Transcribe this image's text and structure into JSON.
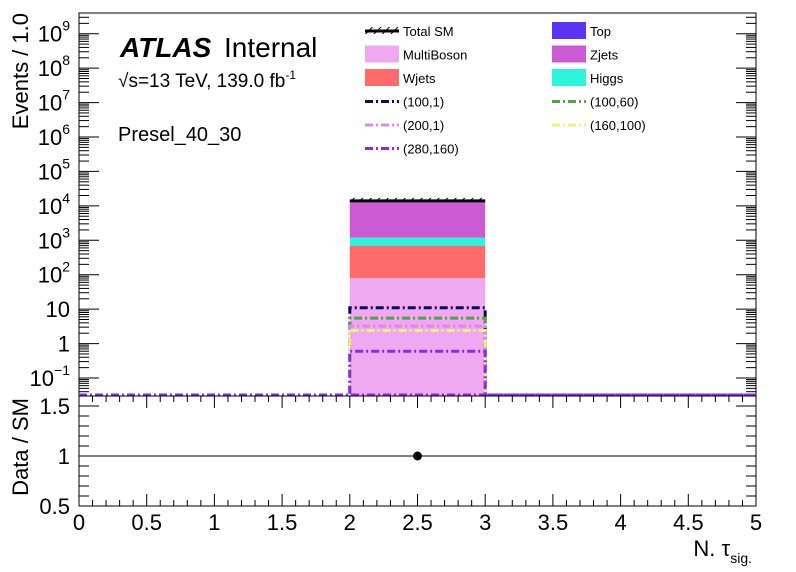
{
  "chart_data": [
    {
      "type": "bar",
      "panel": "main",
      "ylabel": "Events / 1.0",
      "yscale": "log",
      "ylim": [
        0.03,
        4000000000
      ],
      "xlim": [
        0,
        5
      ],
      "y_ticks": [
        {
          "value": 0.1,
          "base": "10",
          "exp": "−1"
        },
        {
          "value": 1,
          "base": "1",
          "exp": ""
        },
        {
          "value": 10,
          "base": "10",
          "exp": ""
        },
        {
          "value": 100,
          "base": "10",
          "exp": "2"
        },
        {
          "value": 1000,
          "base": "10",
          "exp": "3"
        },
        {
          "value": 10000,
          "base": "10",
          "exp": "4"
        },
        {
          "value": 100000,
          "base": "10",
          "exp": "5"
        },
        {
          "value": 1000000,
          "base": "10",
          "exp": "6"
        },
        {
          "value": 10000000,
          "base": "10",
          "exp": "7"
        },
        {
          "value": 100000000,
          "base": "10",
          "exp": "8"
        },
        {
          "value": 1000000000,
          "base": "10",
          "exp": "9"
        }
      ],
      "bin_edges": [
        2,
        3
      ],
      "stack": [
        {
          "name": "MultiBoson",
          "color": "#f0a8f0",
          "value": 80
        },
        {
          "name": "Wjets",
          "color": "#ff6a6a",
          "value": 620
        },
        {
          "name": "Higgs",
          "color": "#2cf5dc",
          "value": 500
        },
        {
          "name": "Zjets",
          "color": "#cc5ad2",
          "value": 12800
        },
        {
          "name": "Top",
          "color": "#5a33f5",
          "value": 0
        }
      ],
      "total_sm": {
        "name": "Total SM",
        "value": 14000
      },
      "signals": [
        {
          "name": "(100,1)",
          "color": "#0b0b57",
          "value": 11
        },
        {
          "name": "(100,60)",
          "color": "#4ea53d",
          "value": 5.5
        },
        {
          "name": "(200,1)",
          "color": "#d98cf0",
          "value": 3.2
        },
        {
          "name": "(160,100)",
          "color": "#f2ee7a",
          "value": 2.4
        },
        {
          "name": "(280,160)",
          "color": "#8a2be2",
          "value": 0.6
        }
      ]
    },
    {
      "type": "scatter",
      "panel": "ratio",
      "ylabel": "Data / SM",
      "xlabel": "N. τ",
      "xlabel_sub": "sig.",
      "ylim": [
        0.5,
        1.6
      ],
      "xlim": [
        0,
        5
      ],
      "y_ticks": [
        "0.5",
        "1",
        "1.5"
      ],
      "x_ticks": [
        "0",
        "0.5",
        "1",
        "1.5",
        "2",
        "2.5",
        "3",
        "3.5",
        "4",
        "4.5",
        "5"
      ],
      "reference_line": 1,
      "points": [
        {
          "x": 2.5,
          "y": 1
        }
      ]
    }
  ],
  "labels": {
    "atlas": "ATLAS",
    "internal": "Internal",
    "energy_sqrt": "√",
    "energy_text": "s=13 TeV, 139.0 fb",
    "energy_exp": "-1",
    "region": "Presel_40_30"
  },
  "legend": {
    "placement": "top-right",
    "columns": [
      [
        {
          "name": "Total SM",
          "style": "hatch",
          "color": "#000000"
        },
        {
          "name": "MultiBoson",
          "style": "box",
          "color": "#f0a8f0"
        },
        {
          "name": "Wjets",
          "style": "box",
          "color": "#ff6a6a"
        },
        {
          "name": "(100,1)",
          "style": "dashdot",
          "color": "#0b0b57"
        },
        {
          "name": "(200,1)",
          "style": "dashdot",
          "color": "#d98cf0"
        },
        {
          "name": "(280,160)",
          "style": "dashdot",
          "color": "#8a2be2"
        }
      ],
      [
        {
          "name": "Top",
          "style": "box",
          "color": "#5a33f5"
        },
        {
          "name": "Zjets",
          "style": "box",
          "color": "#cc5ad2"
        },
        {
          "name": "Higgs",
          "style": "box",
          "color": "#2cf5dc"
        },
        {
          "name": "(100,60)",
          "style": "dashdot",
          "color": "#4ea53d"
        },
        {
          "name": "(160,100)",
          "style": "dashdot",
          "color": "#f2ee7a"
        }
      ]
    ]
  }
}
